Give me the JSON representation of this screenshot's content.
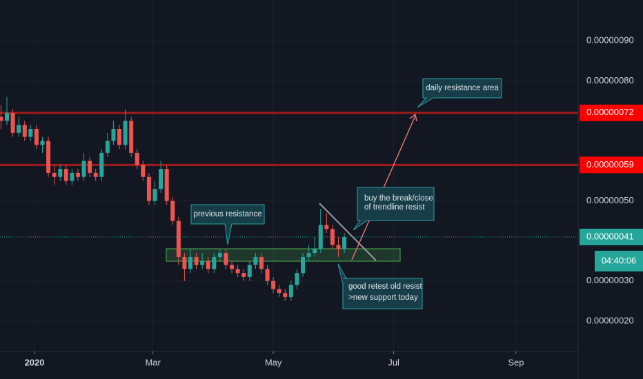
{
  "chart_data": {
    "type": "candlestick",
    "x": [
      -17,
      -14,
      -11,
      -8,
      -5,
      -2,
      1,
      4,
      7,
      10,
      13,
      16,
      19,
      22,
      25,
      28,
      31,
      34,
      37,
      40,
      43,
      46,
      49,
      52,
      55,
      58,
      61,
      64,
      67,
      70,
      73,
      76,
      79,
      82,
      85,
      88,
      91,
      94,
      97,
      100,
      103,
      106,
      109,
      112,
      115,
      118,
      121,
      124,
      127,
      130,
      133,
      136,
      139,
      142,
      145,
      148,
      151,
      154,
      157
    ],
    "open": [
      7.1e-07,
      7e-07,
      7.2e-07,
      6.7e-07,
      6.9e-07,
      6.6e-07,
      6.8e-07,
      6.4e-07,
      6.5e-07,
      5.7e-07,
      5.6e-07,
      5.8e-07,
      5.5e-07,
      5.7e-07,
      5.6e-07,
      6e-07,
      5.7e-07,
      5.6e-07,
      6.2e-07,
      6.5e-07,
      6.8e-07,
      6.4e-07,
      7e-07,
      6.2e-07,
      5.9e-07,
      5.6e-07,
      5e-07,
      5.3e-07,
      5.8e-07,
      5e-07,
      4.5e-07,
      3.6e-07,
      3.3e-07,
      3.6e-07,
      3.4e-07,
      3.5e-07,
      3.3e-07,
      3.6e-07,
      3.7e-07,
      3.4e-07,
      3.3e-07,
      3.2e-07,
      3.1e-07,
      3.4e-07,
      3.6e-07,
      3.3e-07,
      3e-07,
      2.8e-07,
      2.7e-07,
      2.6e-07,
      2.9e-07,
      3.2e-07,
      3.6e-07,
      3.7e-07,
      3.8e-07,
      4.4e-07,
      4.3e-07,
      3.9e-07,
      3.8e-07
    ],
    "high": [
      7.4e-07,
      7.6e-07,
      7.3e-07,
      7.1e-07,
      7e-07,
      6.9e-07,
      6.9e-07,
      6.6e-07,
      6.6e-07,
      5.9e-07,
      5.9e-07,
      5.9e-07,
      5.8e-07,
      5.8e-07,
      6.2e-07,
      6.1e-07,
      5.8e-07,
      6.3e-07,
      6.7e-07,
      7e-07,
      6.9e-07,
      7.3e-07,
      7.1e-07,
      6.3e-07,
      6e-07,
      5.7e-07,
      5.5e-07,
      6e-07,
      5.9e-07,
      5.1e-07,
      4.6e-07,
      3.7e-07,
      3.8e-07,
      3.7e-07,
      3.7e-07,
      3.6e-07,
      3.7e-07,
      3.8e-07,
      3.8e-07,
      3.5e-07,
      3.4e-07,
      3.3e-07,
      3.5e-07,
      3.7e-07,
      3.7e-07,
      3.4e-07,
      3.1e-07,
      2.9e-07,
      2.8e-07,
      3e-07,
      3.3e-07,
      3.7e-07,
      3.9e-07,
      4.1e-07,
      4.8e-07,
      4.7e-07,
      4.4e-07,
      4.1e-07,
      4.2e-07
    ],
    "low": [
      6.8e-07,
      6.9e-07,
      6.6e-07,
      6.6e-07,
      6.5e-07,
      6.5e-07,
      6.3e-07,
      6.2e-07,
      5.6e-07,
      5.4e-07,
      5.5e-07,
      5.4e-07,
      5.4e-07,
      5.5e-07,
      5.5e-07,
      5.6e-07,
      5.5e-07,
      5.5e-07,
      6.1e-07,
      6.4e-07,
      6.3e-07,
      6.3e-07,
      6.1e-07,
      5.8e-07,
      5.5e-07,
      4.9e-07,
      4.9e-07,
      5.2e-07,
      4.9e-07,
      4.4e-07,
      3.4e-07,
      3e-07,
      3.2e-07,
      3.3e-07,
      3.3e-07,
      3.2e-07,
      3.2e-07,
      3.5e-07,
      3.3e-07,
      3.2e-07,
      3.1e-07,
      3e-07,
      3e-07,
      3.3e-07,
      3.2e-07,
      2.9e-07,
      2.7e-07,
      2.6e-07,
      2.5e-07,
      2.5e-07,
      2.8e-07,
      3.1e-07,
      3.5e-07,
      3.6e-07,
      3.7e-07,
      4.2e-07,
      3.8e-07,
      3.6e-07,
      3.7e-07
    ],
    "close": [
      7e-07,
      7.2e-07,
      6.7e-07,
      6.9e-07,
      6.6e-07,
      6.8e-07,
      6.4e-07,
      6.5e-07,
      5.7e-07,
      5.6e-07,
      5.8e-07,
      5.5e-07,
      5.7e-07,
      5.6e-07,
      6e-07,
      5.7e-07,
      5.6e-07,
      6.2e-07,
      6.5e-07,
      6.8e-07,
      6.4e-07,
      7e-07,
      6.2e-07,
      5.9e-07,
      5.6e-07,
      5e-07,
      5.3e-07,
      5.8e-07,
      5e-07,
      4.5e-07,
      3.6e-07,
      3.3e-07,
      3.6e-07,
      3.4e-07,
      3.5e-07,
      3.3e-07,
      3.6e-07,
      3.7e-07,
      3.4e-07,
      3.3e-07,
      3.2e-07,
      3.1e-07,
      3.4e-07,
      3.6e-07,
      3.3e-07,
      3e-07,
      2.8e-07,
      2.7e-07,
      2.6e-07,
      2.9e-07,
      3.2e-07,
      3.6e-07,
      3.7e-07,
      3.8e-07,
      4.4e-07,
      4.3e-07,
      3.9e-07,
      3.8e-07,
      4.1e-07
    ],
    "up_color": "#26a69a",
    "down_color": "#ef5350",
    "xlim": [
      -17.5,
      275.5
    ],
    "xticks": [
      {
        "value": 0,
        "label": "2020"
      },
      {
        "value": 60,
        "label": "Mar"
      },
      {
        "value": 121,
        "label": "May"
      },
      {
        "value": 182,
        "label": "Jul"
      },
      {
        "value": 244,
        "label": "Sep"
      }
    ],
    "ylim": [
      1.24e-07,
      1.002e-06
    ],
    "yticks": [
      {
        "value": 9e-07,
        "label": "0.00000090"
      },
      {
        "value": 8e-07,
        "label": "0.00000080"
      },
      {
        "value": 5e-07,
        "label": "0.00000050"
      },
      {
        "value": 3e-07,
        "label": "0.00000030"
      },
      {
        "value": 2e-07,
        "label": "0.00000020"
      }
    ],
    "grid": true,
    "levels": [
      {
        "value": 7.2e-07,
        "label": "0.00000072",
        "color": "#a11a1a"
      },
      {
        "value": 5.9e-07,
        "label": "0.00000059",
        "color": "#a11a1a"
      }
    ],
    "last": {
      "value": 4.1e-07,
      "label": "0.00000041",
      "countdown": "04:40:06",
      "color": "#26a69a"
    }
  },
  "annotations": {
    "previous": "previous resistance",
    "daily": "daily resistance area",
    "buy": [
      "buy the break/close",
      "of trendline resist"
    ],
    "retest": [
      "good retest old resist",
      ">new support today"
    ]
  }
}
